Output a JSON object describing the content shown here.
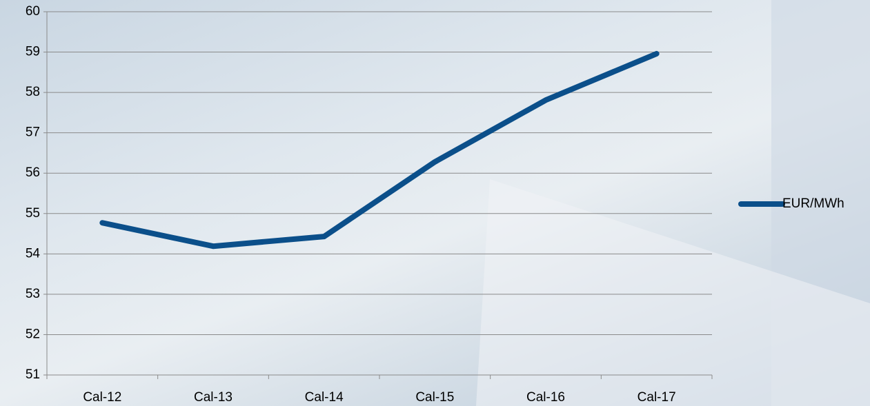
{
  "chart_data": {
    "type": "line",
    "categories": [
      "Cal-12",
      "Cal-13",
      "Cal-14",
      "Cal-15",
      "Cal-16",
      "Cal-17"
    ],
    "series": [
      {
        "name": "EUR/MWh",
        "color": "#0b4f8a",
        "values": [
          54.77,
          54.19,
          54.43,
          56.28,
          57.81,
          58.96
        ]
      }
    ],
    "ylim": [
      51,
      60
    ],
    "yticks": [
      51,
      52,
      53,
      54,
      55,
      56,
      57,
      58,
      59,
      60
    ],
    "grid": true,
    "legend": "right"
  }
}
